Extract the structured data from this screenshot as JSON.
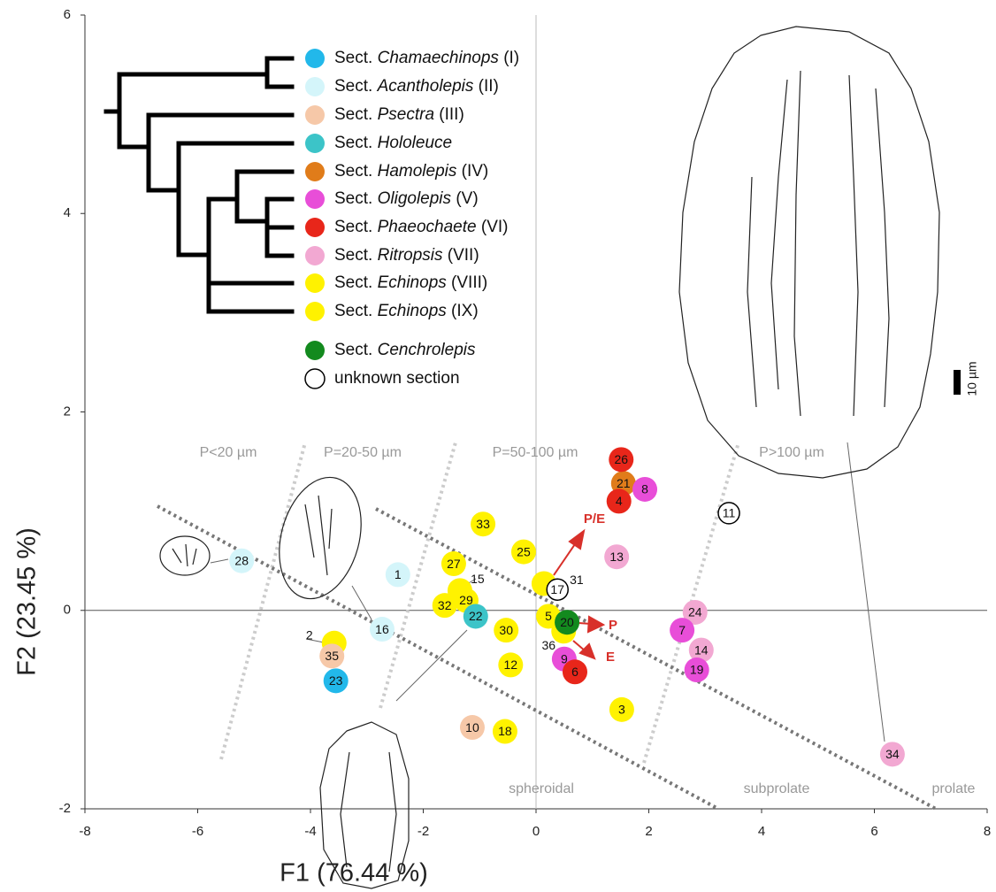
{
  "chart_data": {
    "type": "scatter",
    "xlabel": "F1 (76.44 %)",
    "ylabel": "F2 (23.45 %)",
    "xlim": [
      -8,
      8
    ],
    "ylim": [
      -2,
      6
    ],
    "xticks": [
      -8,
      -6,
      -4,
      -2,
      0,
      2,
      4,
      6,
      8
    ],
    "yticks": [
      -2,
      0,
      2,
      4,
      6
    ],
    "series": [
      {
        "prefix": "Sect.",
        "name": "Chamaechinops",
        "suffix": "(I)",
        "color": "#22b8ea",
        "labels": [
          "23"
        ],
        "x": [
          -3.55
        ],
        "y": [
          -0.71
        ]
      },
      {
        "prefix": "Sect.",
        "name": "Acantholepis",
        "suffix": "(II)",
        "color": "#d4f5fa",
        "labels": [
          "28",
          "1",
          "16"
        ],
        "x": [
          -5.22,
          -2.45,
          -2.73
        ],
        "y": [
          0.5,
          0.36,
          -0.19
        ]
      },
      {
        "prefix": "Sect.",
        "name": "Psectra",
        "suffix": "(III)",
        "color": "#f6c8a8",
        "labels": [
          "35",
          "10"
        ],
        "x": [
          -3.62,
          -1.13
        ],
        "y": [
          -0.46,
          -1.18
        ]
      },
      {
        "prefix": "Sect.",
        "name": "Hololeuce",
        "color": "#3cc4c8",
        "labels": [
          "22"
        ],
        "x": [
          -1.07
        ],
        "y": [
          -0.06
        ]
      },
      {
        "prefix": "Sect.",
        "name": "Hamolepis",
        "suffix": "(IV)",
        "color": "#e07c1a",
        "labels": [
          "21"
        ],
        "x": [
          1.55
        ],
        "y": [
          1.28
        ]
      },
      {
        "prefix": "Sect.",
        "name": "Oligolepis",
        "suffix": "(V)",
        "color": "#e84ed8",
        "labels": [
          "8",
          "7",
          "19",
          "9"
        ],
        "x": [
          1.93,
          2.59,
          2.85,
          0.5
        ],
        "y": [
          1.22,
          -0.2,
          -0.6,
          -0.49
        ]
      },
      {
        "prefix": "Sect.",
        "name": "Phaeochaete",
        "suffix": "(VI)",
        "color": "#e8261a",
        "labels": [
          "26",
          "4",
          "6"
        ],
        "x": [
          1.51,
          1.47,
          0.69
        ],
        "y": [
          1.52,
          1.1,
          -0.62
        ]
      },
      {
        "prefix": "Sect.",
        "name": "Ritropsis",
        "suffix": "(VII)",
        "color": "#f2a8d2",
        "labels": [
          "13",
          "24",
          "14",
          "34"
        ],
        "x": [
          1.43,
          2.82,
          2.93,
          6.32
        ],
        "y": [
          0.54,
          -0.02,
          -0.4,
          -1.45
        ]
      },
      {
        "prefix": "Sect.",
        "name": "Echinops",
        "suffix": "(VIII)",
        "color": "#fff200",
        "labels": [
          "33",
          "25",
          "27",
          "15",
          "29",
          "32",
          "31",
          "5",
          "36",
          "30",
          "12",
          "2",
          "3",
          "18"
        ],
        "x": [
          -0.94,
          -0.22,
          -1.46,
          -1.35,
          -1.24,
          -1.62,
          0.14,
          0.22,
          0.49,
          -0.53,
          -0.45,
          -3.58,
          1.52,
          -0.55
        ],
        "y": [
          0.87,
          0.59,
          0.47,
          0.2,
          0.1,
          0.05,
          0.27,
          -0.06,
          -0.21,
          -0.2,
          -0.55,
          -0.33,
          -1.0,
          -1.22
        ]
      },
      {
        "prefix": "Sect.",
        "name": "Echinops",
        "suffix": "(IX)",
        "color": "#fff200",
        "labels": [],
        "x": [],
        "y": []
      },
      {
        "prefix": "Sect.",
        "name": "Cenchrolepis",
        "color": "#138a1e",
        "labels": [
          "20"
        ],
        "x": [
          0.55
        ],
        "y": [
          -0.12
        ]
      },
      {
        "name": "unknown section",
        "color": "#ffffff",
        "labels": [
          "11",
          "17"
        ],
        "x": [
          3.42,
          0.38
        ],
        "y": [
          0.98,
          0.21
        ]
      }
    ],
    "annotations": [
      "P<20 µm",
      "P=20-50 µm",
      "P=50-100 µm",
      "P>100 µm",
      "spheroidal",
      "subprolate",
      "prolate",
      "P/E",
      "P",
      "E",
      "10 µm"
    ]
  }
}
